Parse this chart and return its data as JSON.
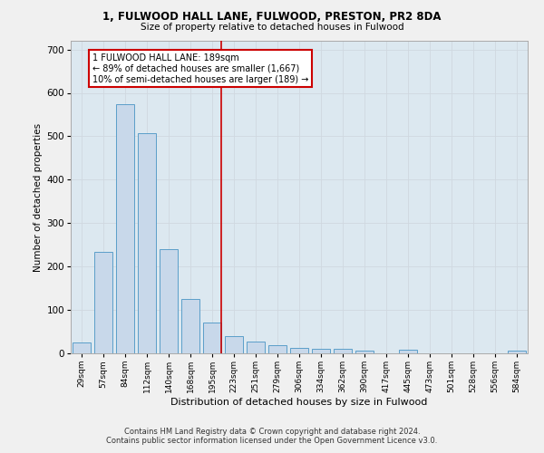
{
  "title1": "1, FULWOOD HALL LANE, FULWOOD, PRESTON, PR2 8DA",
  "title2": "Size of property relative to detached houses in Fulwood",
  "xlabel": "Distribution of detached houses by size in Fulwood",
  "ylabel": "Number of detached properties",
  "categories": [
    "29sqm",
    "57sqm",
    "84sqm",
    "112sqm",
    "140sqm",
    "168sqm",
    "195sqm",
    "223sqm",
    "251sqm",
    "279sqm",
    "306sqm",
    "334sqm",
    "362sqm",
    "390sqm",
    "417sqm",
    "445sqm",
    "473sqm",
    "501sqm",
    "528sqm",
    "556sqm",
    "584sqm"
  ],
  "values": [
    25,
    233,
    573,
    507,
    240,
    125,
    72,
    40,
    27,
    18,
    12,
    11,
    10,
    6,
    0,
    8,
    0,
    0,
    0,
    0,
    6
  ],
  "bar_color": "#c8d8ea",
  "bar_edge_color": "#5b9ec9",
  "vline_index": 6,
  "annotation_text": "1 FULWOOD HALL LANE: 189sqm\n← 89% of detached houses are smaller (1,667)\n10% of semi-detached houses are larger (189) →",
  "annotation_box_color": "#ffffff",
  "annotation_box_edge": "#cc0000",
  "vline_color": "#cc0000",
  "ylim": [
    0,
    720
  ],
  "yticks": [
    0,
    100,
    200,
    300,
    400,
    500,
    600,
    700
  ],
  "grid_color": "#d0d8e0",
  "bg_color": "#dce8f0",
  "fig_bg_color": "#f0f0f0",
  "footer1": "Contains HM Land Registry data © Crown copyright and database right 2024.",
  "footer2": "Contains public sector information licensed under the Open Government Licence v3.0."
}
